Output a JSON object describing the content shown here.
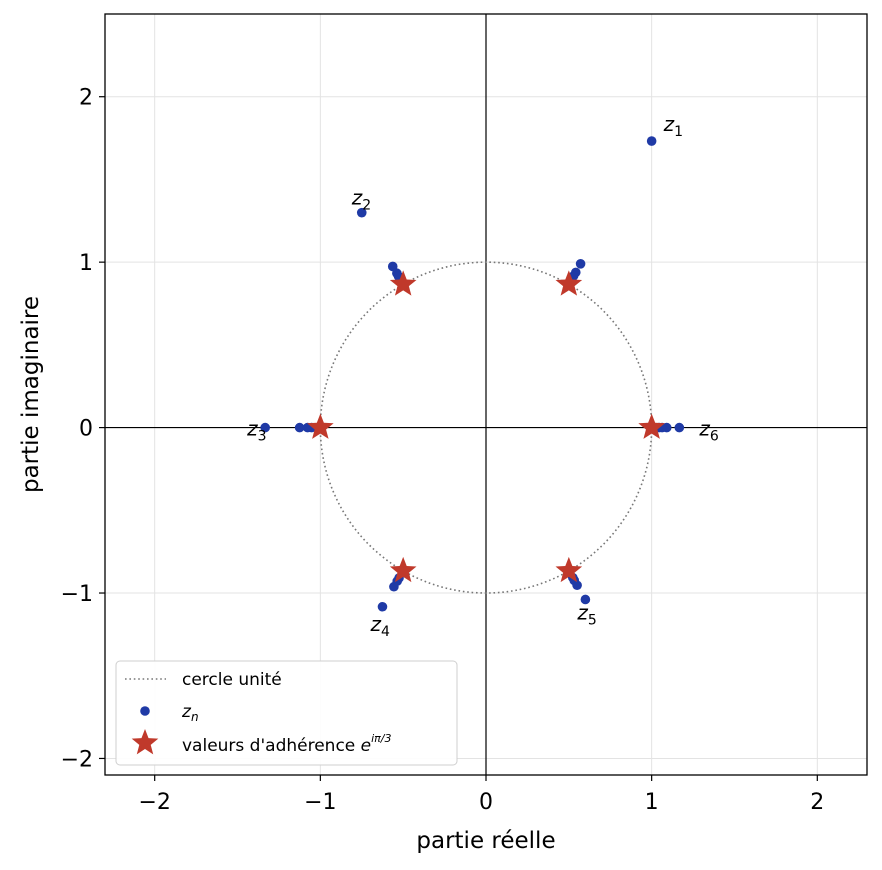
{
  "chart_data": {
    "type": "scatter",
    "xlabel": "partie réelle",
    "ylabel": "partie imaginaire",
    "xlim": [
      -2.3,
      2.3
    ],
    "ylim": [
      -2.1,
      2.5
    ],
    "xticks": [
      -2,
      -1,
      0,
      1,
      2
    ],
    "yticks": [
      -2,
      -1,
      0,
      1,
      2
    ],
    "tick_labels": {
      "-2": "−2",
      "-1": "−1",
      "0": "0",
      "1": "1",
      "2": "2"
    },
    "grid": true,
    "legend_position": "lower-left",
    "unit_circle": {
      "label": "cercle unité",
      "radius": 1,
      "color": "#777777"
    },
    "series": [
      {
        "name": "z_n",
        "color": "#1f3aa6",
        "points": [
          [
            1.0,
            1.732
          ],
          [
            -0.75,
            1.299
          ],
          [
            -1.333,
            0.0
          ],
          [
            -0.625,
            -1.083
          ],
          [
            0.6,
            -1.039
          ],
          [
            1.167,
            0.0
          ],
          [
            0.571,
            0.99
          ],
          [
            -0.563,
            0.974
          ],
          [
            -1.125,
            0.0
          ],
          [
            -0.556,
            -0.962
          ],
          [
            0.55,
            -0.953
          ],
          [
            1.091,
            0.0
          ],
          [
            0.542,
            0.938
          ],
          [
            -0.538,
            0.933
          ],
          [
            -1.077,
            0.0
          ],
          [
            -0.536,
            -0.928
          ],
          [
            0.533,
            -0.924
          ],
          [
            1.063,
            0.0
          ],
          [
            0.529,
            0.917
          ],
          [
            -0.528,
            0.914
          ],
          [
            -1.053,
            0.0
          ],
          [
            -0.525,
            -0.909
          ],
          [
            0.524,
            -0.907
          ],
          [
            1.045,
            0.0
          ]
        ]
      },
      {
        "name": "valeurs d'adhérence",
        "color": "#c0392b",
        "points": [
          [
            1,
            0
          ],
          [
            0.5,
            0.866
          ],
          [
            -0.5,
            0.866
          ],
          [
            -1,
            0
          ],
          [
            -0.5,
            -0.866
          ],
          [
            0.5,
            -0.866
          ]
        ]
      }
    ],
    "annotations": [
      {
        "base": "z",
        "sub": "1",
        "x": 1.0,
        "y": 1.732
      },
      {
        "base": "z",
        "sub": "2",
        "x": -0.75,
        "y": 1.299
      },
      {
        "base": "z",
        "sub": "3",
        "x": -1.333,
        "y": 0.0
      },
      {
        "base": "z",
        "sub": "4",
        "x": -0.625,
        "y": -1.083
      },
      {
        "base": "z",
        "sub": "5",
        "x": 0.6,
        "y": -1.039
      },
      {
        "base": "z",
        "sub": "6",
        "x": 1.167,
        "y": 0.0
      }
    ],
    "legend": [
      {
        "kind": "dotted-line",
        "label": "cercle unité"
      },
      {
        "kind": "dot",
        "label_base": "z",
        "label_sub": "n"
      },
      {
        "kind": "star",
        "label": "valeurs d'adhérence ",
        "label_math": "e",
        "label_sup": "iπ/3"
      }
    ]
  }
}
